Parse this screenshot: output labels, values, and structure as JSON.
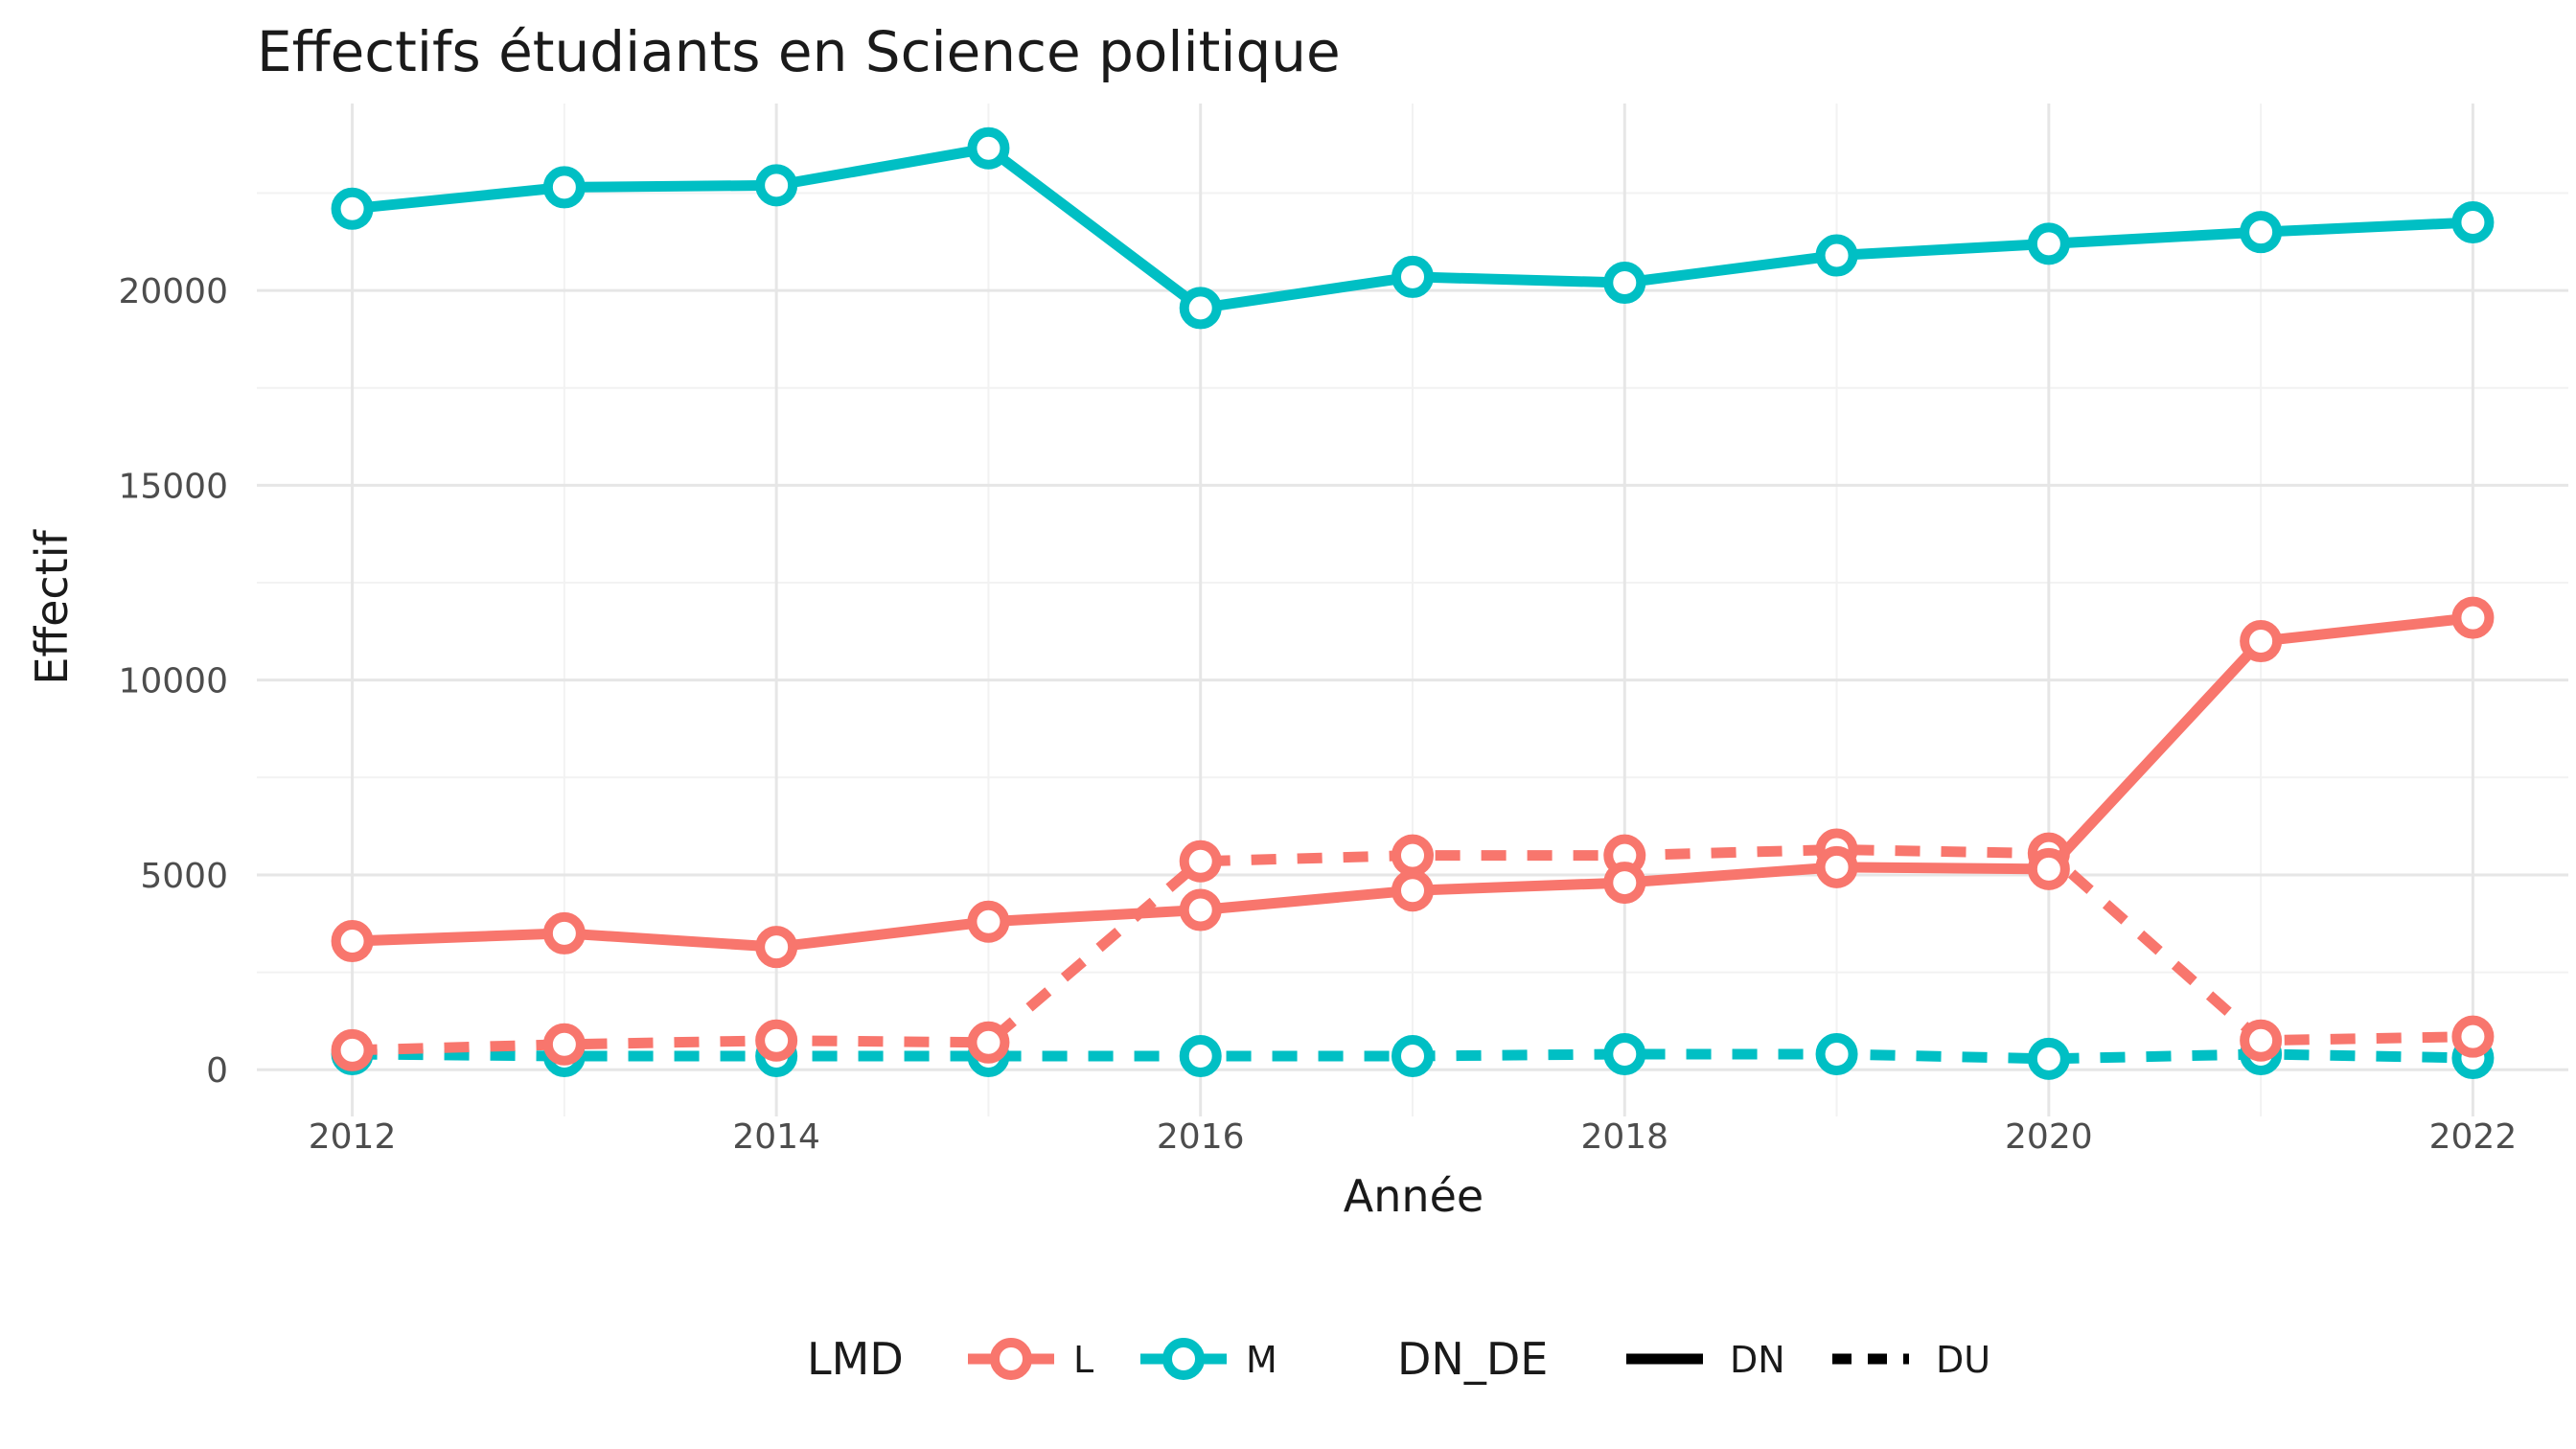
{
  "chart_data": {
    "type": "line",
    "title": "Effectifs étudiants en Science politique",
    "xlabel": "Année",
    "ylabel": "Effectif",
    "x": [
      2012,
      2013,
      2014,
      2015,
      2016,
      2017,
      2018,
      2019,
      2020,
      2021,
      2022
    ],
    "xlim": [
      2011.55,
      2022.45
    ],
    "ylim": [
      -1200,
      24800
    ],
    "x_ticks": [
      "2012",
      "2014",
      "2016",
      "2018",
      "2020",
      "2022"
    ],
    "y_ticks": [
      "0",
      "5000",
      "10000",
      "15000",
      "20000"
    ],
    "grid": true,
    "legend_placement": "bottom",
    "legends": [
      {
        "title": "LMD",
        "entries": [
          {
            "label": "L",
            "color": "#F8766D"
          },
          {
            "label": "M",
            "color": "#00BFC4"
          }
        ]
      },
      {
        "title": "DN_DE",
        "entries": [
          {
            "label": "DN",
            "linetype": "solid"
          },
          {
            "label": "DU",
            "linetype": "dashed"
          }
        ]
      }
    ],
    "series": [
      {
        "lmd": "M",
        "dn_de": "DN",
        "color": "#00BFC4",
        "linetype": "solid",
        "values": [
          22100,
          22650,
          22700,
          23650,
          19550,
          20350,
          20200,
          20900,
          21200,
          21500,
          21750
        ]
      },
      {
        "lmd": "L",
        "dn_de": "DN",
        "color": "#F8766D",
        "linetype": "solid",
        "values": [
          3300,
          3500,
          3150,
          3800,
          4100,
          4600,
          4800,
          5200,
          5150,
          11000,
          11600
        ]
      },
      {
        "lmd": "L",
        "dn_de": "DU",
        "color": "#F8766D",
        "linetype": "dashed",
        "values": [
          500,
          650,
          750,
          700,
          5350,
          5500,
          5500,
          5650,
          5550,
          750,
          850
        ]
      },
      {
        "lmd": "M",
        "dn_de": "DU",
        "color": "#00BFC4",
        "linetype": "dashed",
        "values": [
          400,
          350,
          350,
          350,
          350,
          350,
          400,
          400,
          280,
          400,
          300
        ]
      }
    ]
  }
}
